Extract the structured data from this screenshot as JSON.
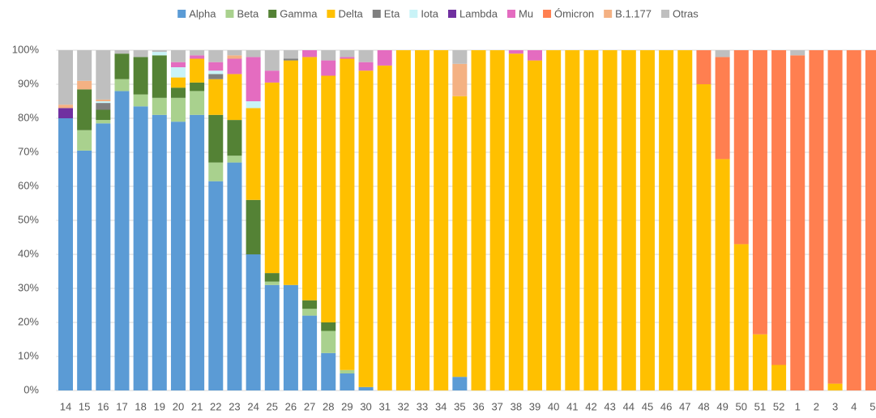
{
  "chart_data": {
    "type": "stacked-bar",
    "categories": [
      "14",
      "15",
      "16",
      "17",
      "18",
      "19",
      "20",
      "21",
      "22",
      "23",
      "24",
      "25",
      "26",
      "27",
      "28",
      "29",
      "30",
      "31",
      "32",
      "33",
      "34",
      "35",
      "36",
      "37",
      "38",
      "39",
      "40",
      "41",
      "42",
      "43",
      "44",
      "45",
      "46",
      "47",
      "48",
      "49",
      "50",
      "51",
      "52",
      "1",
      "2",
      "3",
      "4",
      "5"
    ],
    "series": [
      {
        "name": "Alpha",
        "color": "#5b9bd5",
        "values": [
          80,
          70.5,
          78.5,
          88,
          83.5,
          81,
          79,
          81,
          61.5,
          67,
          40,
          31,
          31,
          22,
          11,
          5,
          1,
          0,
          0,
          0,
          0,
          4,
          0,
          0,
          0,
          0,
          0,
          0,
          0,
          0,
          0,
          0,
          0,
          0,
          0,
          0,
          0,
          0,
          0,
          0,
          0,
          0,
          0,
          0
        ]
      },
      {
        "name": "Beta",
        "color": "#a9d18e",
        "values": [
          0,
          6,
          1,
          3.5,
          3.5,
          5,
          7,
          7,
          5.5,
          2,
          0,
          1,
          0,
          2,
          6.5,
          1,
          0,
          0,
          0,
          0,
          0,
          0,
          0,
          0,
          0,
          0,
          0,
          0,
          0,
          0,
          0,
          0,
          0,
          0,
          0,
          0,
          0,
          0,
          0,
          0,
          0,
          0,
          0,
          0
        ]
      },
      {
        "name": "Gamma",
        "color": "#548235",
        "values": [
          0,
          12,
          3,
          7.5,
          11,
          12.5,
          3,
          2.5,
          14,
          10.5,
          16,
          2.5,
          0,
          2.5,
          2.5,
          0,
          0,
          0,
          0,
          0,
          0,
          0,
          0,
          0,
          0,
          0,
          0,
          0,
          0,
          0,
          0,
          0,
          0,
          0,
          0,
          0,
          0,
          0,
          0,
          0,
          0,
          0,
          0,
          0
        ]
      },
      {
        "name": "Delta",
        "color": "#ffc000",
        "values": [
          0,
          0,
          0,
          0,
          0,
          0,
          3,
          7,
          10.5,
          13.5,
          27,
          56,
          66,
          71.5,
          72.5,
          91.5,
          93,
          95.5,
          100,
          100,
          100,
          82.5,
          100,
          100,
          99,
          97,
          100,
          100,
          100,
          100,
          100,
          100,
          100,
          100,
          90,
          68,
          43,
          16.5,
          7.5,
          0,
          0,
          2,
          0,
          0
        ]
      },
      {
        "name": "Eta",
        "color": "#7f7f7f",
        "values": [
          0,
          0,
          2,
          0,
          0,
          0,
          0,
          0,
          1.5,
          0,
          0,
          0,
          0.5,
          0,
          0,
          0,
          0,
          0,
          0,
          0,
          0,
          0,
          0,
          0,
          0,
          0,
          0,
          0,
          0,
          0,
          0,
          0,
          0,
          0,
          0,
          0,
          0,
          0,
          0,
          0,
          0,
          0,
          0,
          0
        ]
      },
      {
        "name": "Iota",
        "color": "#c9f3f7",
        "values": [
          0,
          0,
          0.5,
          0,
          0,
          1,
          3,
          0,
          1,
          0,
          2,
          0,
          0,
          0,
          0,
          0,
          0,
          0,
          0,
          0,
          0,
          0,
          0,
          0,
          0,
          0,
          0,
          0,
          0,
          0,
          0,
          0,
          0,
          0,
          0,
          0,
          0,
          0,
          0,
          0,
          0,
          0,
          0,
          0
        ]
      },
      {
        "name": "Lambda",
        "color": "#7030a0",
        "values": [
          3,
          0,
          0,
          0,
          0,
          0,
          0,
          0,
          0,
          0,
          0,
          0,
          0,
          0,
          0,
          0,
          0,
          0,
          0,
          0,
          0,
          0,
          0,
          0,
          0,
          0,
          0,
          0,
          0,
          0,
          0,
          0,
          0,
          0,
          0,
          0,
          0,
          0,
          0,
          0,
          0,
          0,
          0,
          0
        ]
      },
      {
        "name": "Mu",
        "color": "#e46cc0",
        "values": [
          0,
          0,
          0,
          0,
          0,
          0,
          1.5,
          1,
          2.5,
          4.5,
          13,
          3.5,
          0,
          2,
          4.5,
          0.5,
          2.5,
          4.5,
          0,
          0,
          0,
          0,
          0,
          0,
          1,
          3,
          0,
          0,
          0,
          0,
          0,
          0,
          0,
          0,
          0,
          0,
          0,
          0,
          0,
          0,
          0,
          0,
          0,
          0
        ]
      },
      {
        "name": "Ómicron",
        "color": "#ff7f50",
        "values": [
          0,
          0,
          0,
          0,
          0,
          0,
          0,
          0,
          0,
          0,
          0,
          0,
          0,
          0,
          0,
          0,
          0,
          0,
          0,
          0,
          0,
          0,
          0,
          0,
          0,
          0,
          0,
          0,
          0,
          0,
          0,
          0,
          0,
          0,
          10,
          30,
          57,
          83.5,
          92.5,
          98.5,
          100,
          98,
          100,
          100
        ]
      },
      {
        "name": "B.1.177",
        "color": "#f4b183",
        "values": [
          1,
          2.5,
          0.5,
          0,
          0,
          0,
          0,
          0,
          0,
          1,
          0,
          0,
          0,
          0,
          0,
          0,
          0,
          0,
          0,
          0,
          0,
          9.5,
          0,
          0,
          0,
          0,
          0,
          0,
          0,
          0,
          0,
          0,
          0,
          0,
          0,
          0,
          0,
          0,
          0,
          0,
          0,
          0,
          0,
          0
        ]
      },
      {
        "name": "Otras",
        "color": "#bfbfbf",
        "values": [
          16,
          9,
          14.5,
          1,
          2,
          0.5,
          3.5,
          1.5,
          3.5,
          1.5,
          2,
          6,
          2.5,
          0,
          3,
          2,
          3.5,
          0,
          0,
          0,
          0,
          4,
          0,
          0,
          0,
          0,
          0,
          0,
          0,
          0,
          0,
          0,
          0,
          0,
          0,
          2,
          0,
          0,
          0,
          1.5,
          0,
          0,
          0,
          0
        ]
      }
    ],
    "ylim": [
      0,
      100
    ],
    "yticks": [
      {
        "value": 0,
        "label": "0%"
      },
      {
        "value": 10,
        "label": "10%"
      },
      {
        "value": 20,
        "label": "20%"
      },
      {
        "value": 30,
        "label": "30%"
      },
      {
        "value": 40,
        "label": "40%"
      },
      {
        "value": 50,
        "label": "50%"
      },
      {
        "value": 60,
        "label": "60%"
      },
      {
        "value": 70,
        "label": "70%"
      },
      {
        "value": 80,
        "label": "80%"
      },
      {
        "value": 90,
        "label": "90%"
      },
      {
        "value": 100,
        "label": "100%"
      }
    ],
    "grid": true,
    "legend": "top"
  }
}
